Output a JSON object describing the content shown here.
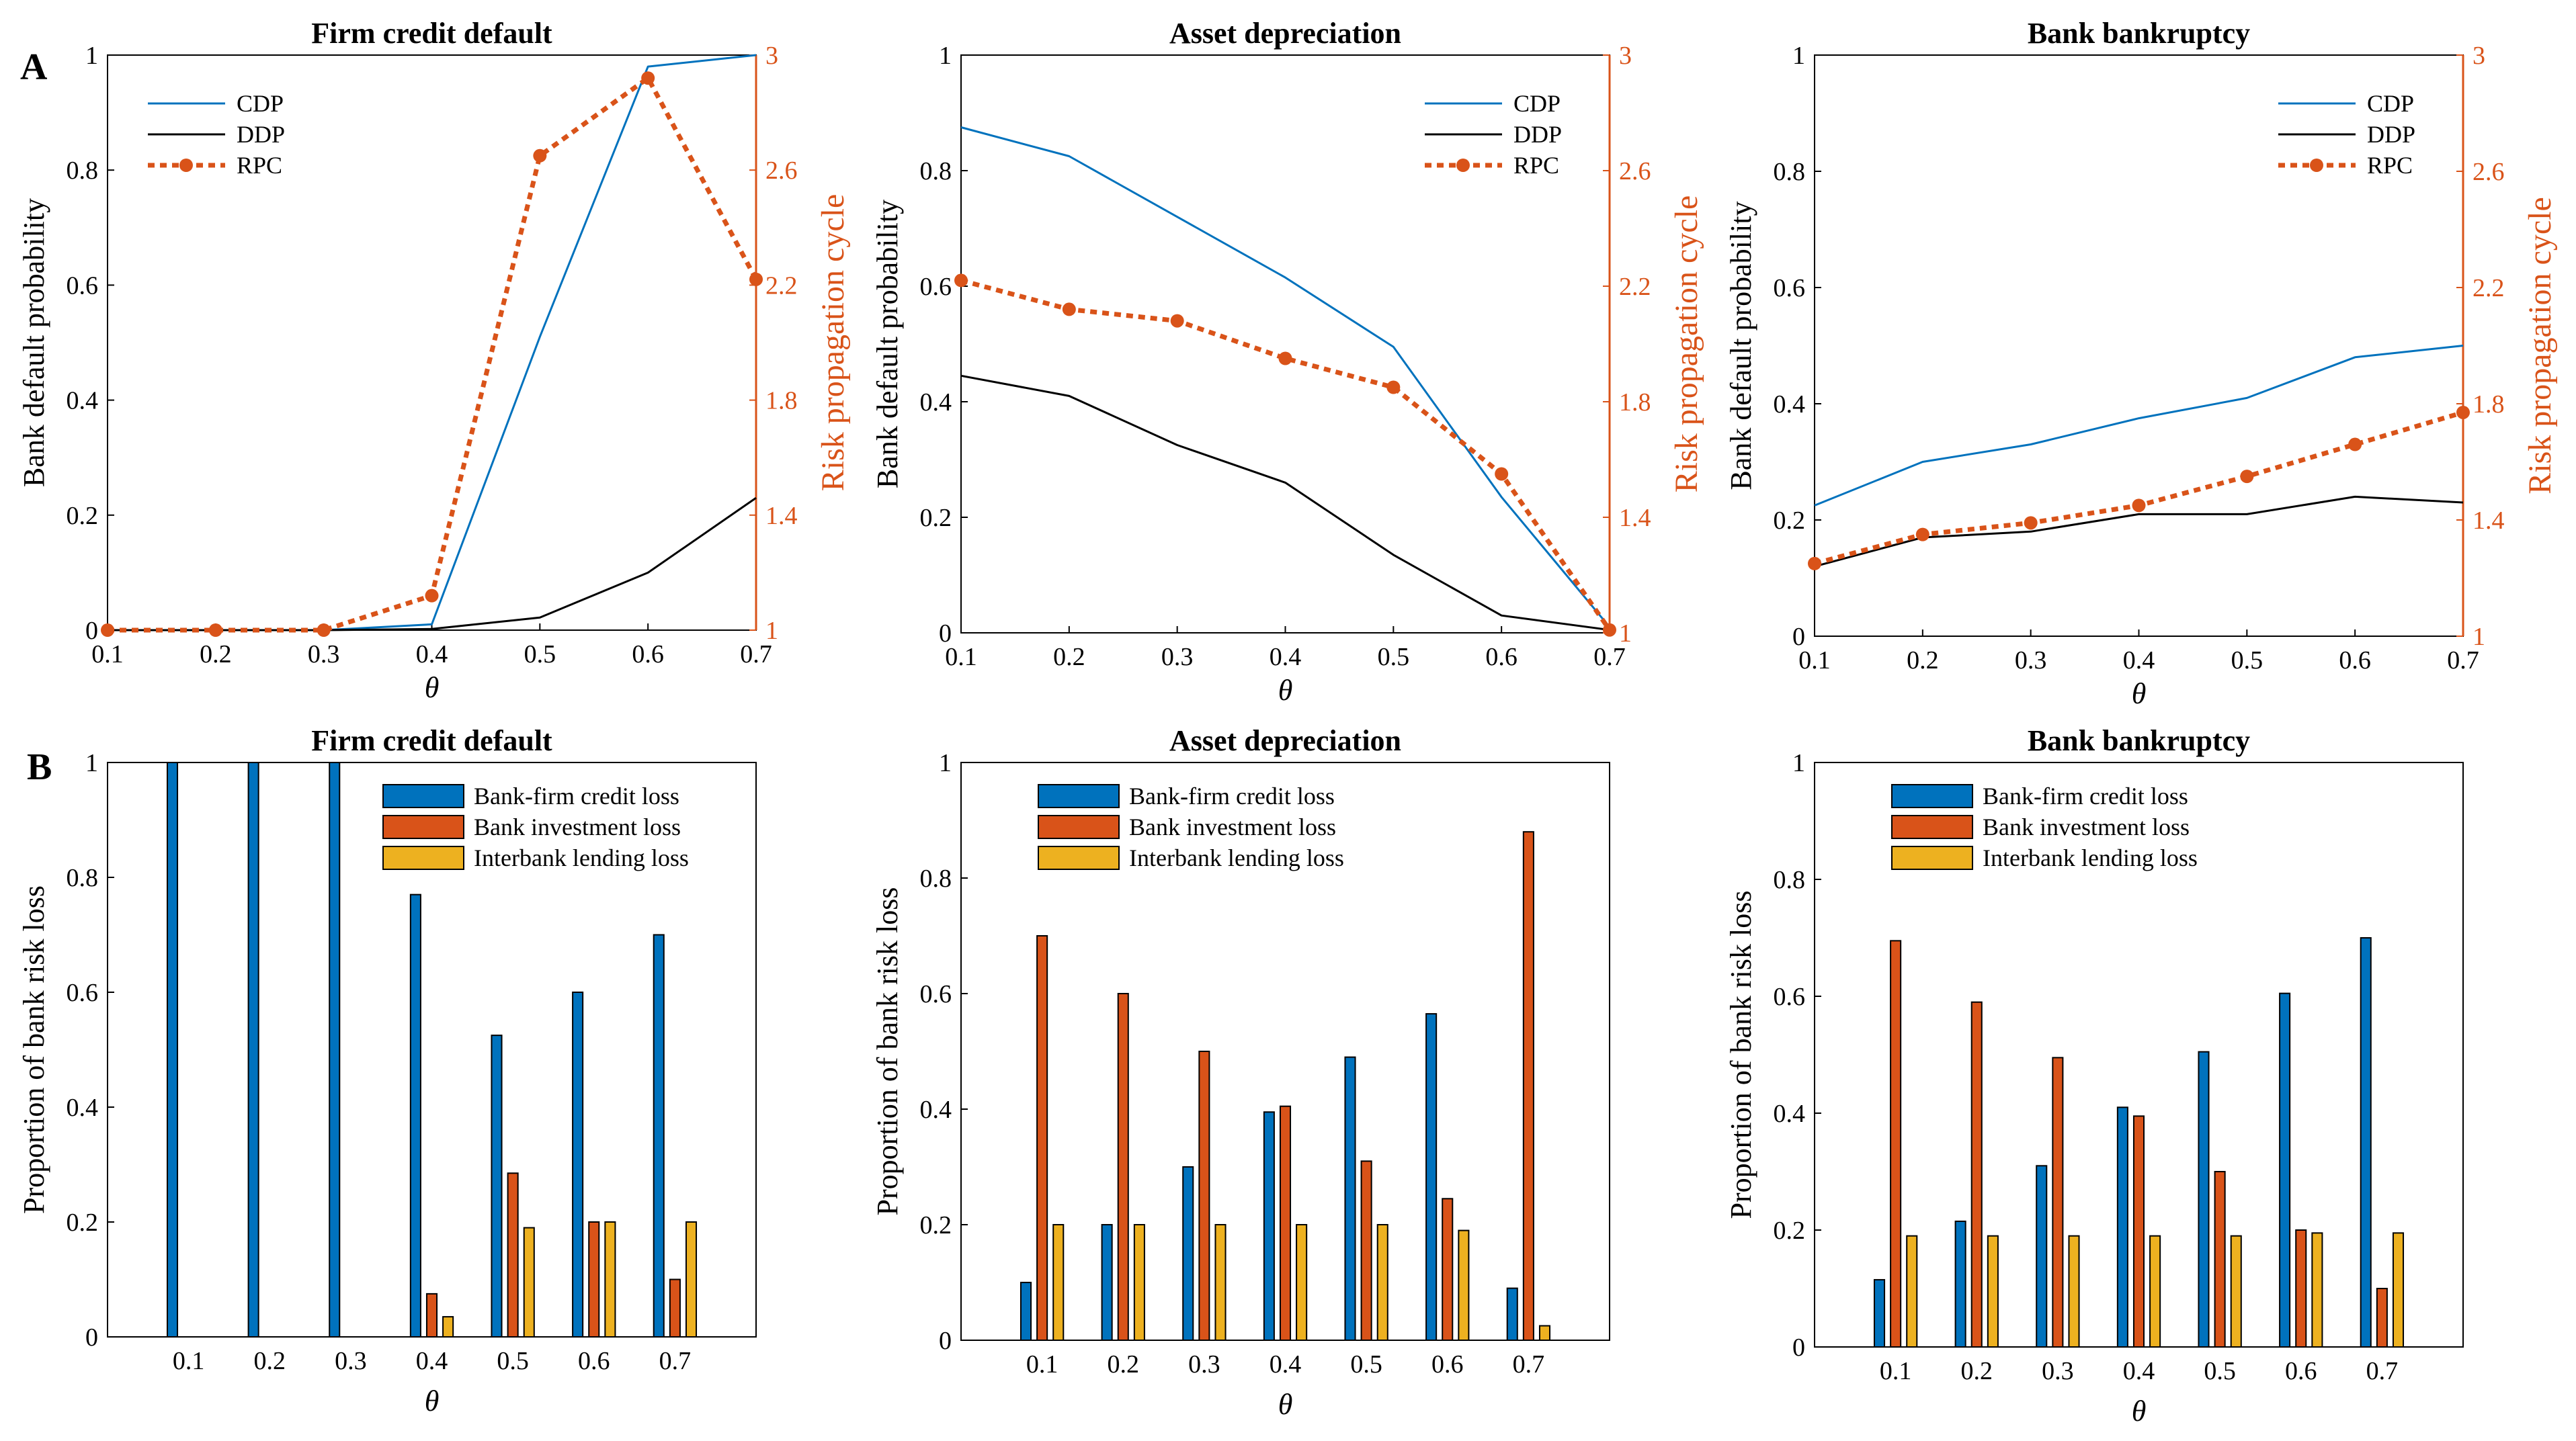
{
  "figure": {
    "panel_labels": [
      "A",
      "B"
    ],
    "colors": {
      "cdp": "#0072BD",
      "ddp": "#000000",
      "rpc": "#D95319",
      "credit": "#0072BD",
      "investment": "#D95319",
      "interbank": "#EDB120",
      "axis": "#000000"
    }
  },
  "chart_data": [
    {
      "id": "A1",
      "type": "line",
      "title": "Firm credit default",
      "xlabel": "θ",
      "ylabel": "Bank default probability",
      "ylabel_right": "Risk propagation cycle",
      "x": [
        0.1,
        0.2,
        0.3,
        0.4,
        0.5,
        0.6,
        0.7
      ],
      "x_tick_labels": [
        "0.1",
        "0.2",
        "0.3",
        "0.4",
        "0.5",
        "0.6",
        "0.7"
      ],
      "ylim": [
        0,
        1
      ],
      "y_tick_labels": [
        "0",
        "0.2",
        "0.4",
        "0.6",
        "0.8",
        "1"
      ],
      "ylim_right": [
        1,
        3
      ],
      "y_right_tick_labels": [
        "1",
        "1.4",
        "1.8",
        "2.2",
        "2.6",
        "3"
      ],
      "legend": [
        "CDP",
        "DDP",
        "RPC"
      ],
      "legend_position": "top-left",
      "series": [
        {
          "name": "CDP",
          "axis": "left",
          "values": [
            0,
            0,
            0,
            0.01,
            0.51,
            0.98,
            1.0
          ]
        },
        {
          "name": "DDP",
          "axis": "left",
          "values": [
            0,
            0,
            0,
            0.002,
            0.022,
            0.1,
            0.23
          ]
        },
        {
          "name": "RPC",
          "axis": "right",
          "values": [
            1.0,
            1.0,
            1.0,
            1.12,
            2.65,
            2.92,
            2.22
          ]
        }
      ]
    },
    {
      "id": "A2",
      "type": "line",
      "title": "Asset depreciation",
      "xlabel": "θ",
      "ylabel": "Bank default probability",
      "ylabel_right": "Risk propagation cycle",
      "x": [
        0.1,
        0.2,
        0.3,
        0.4,
        0.5,
        0.6,
        0.7
      ],
      "x_tick_labels": [
        "0.1",
        "0.2",
        "0.3",
        "0.4",
        "0.5",
        "0.6",
        "0.7"
      ],
      "ylim": [
        0,
        1
      ],
      "y_tick_labels": [
        "0",
        "0.2",
        "0.4",
        "0.6",
        "0.8",
        "1"
      ],
      "ylim_right": [
        1,
        3
      ],
      "y_right_tick_labels": [
        "1",
        "1.4",
        "1.8",
        "2.2",
        "2.6",
        "3"
      ],
      "legend": [
        "CDP",
        "DDP",
        "RPC"
      ],
      "legend_position": "top-right",
      "series": [
        {
          "name": "CDP",
          "axis": "left",
          "values": [
            0.875,
            0.825,
            0.72,
            0.615,
            0.495,
            0.235,
            0.01
          ]
        },
        {
          "name": "DDP",
          "axis": "left",
          "values": [
            0.445,
            0.41,
            0.325,
            0.26,
            0.135,
            0.03,
            0.005
          ]
        },
        {
          "name": "RPC",
          "axis": "right",
          "values": [
            2.22,
            2.12,
            2.08,
            1.95,
            1.85,
            1.55,
            1.01
          ]
        }
      ]
    },
    {
      "id": "A3",
      "type": "line",
      "title": "Bank bankruptcy",
      "xlabel": "θ",
      "ylabel": "Bank default probability",
      "ylabel_right": "Risk propagation cycle",
      "x": [
        0.1,
        0.2,
        0.3,
        0.4,
        0.5,
        0.6,
        0.7
      ],
      "x_tick_labels": [
        "0.1",
        "0.2",
        "0.3",
        "0.4",
        "0.5",
        "0.6",
        "0.7"
      ],
      "ylim": [
        0,
        1
      ],
      "y_tick_labels": [
        "0",
        "0.2",
        "0.4",
        "0.6",
        "0.8",
        "1"
      ],
      "ylim_right": [
        1,
        3
      ],
      "y_right_tick_labels": [
        "1",
        "1.4",
        "1.8",
        "2.2",
        "2.6",
        "3"
      ],
      "legend": [
        "CDP",
        "DDP",
        "RPC"
      ],
      "legend_position": "top-right",
      "series": [
        {
          "name": "CDP",
          "axis": "left",
          "values": [
            0.225,
            0.3,
            0.33,
            0.375,
            0.41,
            0.48,
            0.5
          ]
        },
        {
          "name": "DDP",
          "axis": "left",
          "values": [
            0.12,
            0.17,
            0.18,
            0.21,
            0.21,
            0.24,
            0.23
          ]
        },
        {
          "name": "RPC",
          "axis": "right",
          "values": [
            1.25,
            1.35,
            1.39,
            1.45,
            1.55,
            1.66,
            1.77
          ]
        }
      ]
    },
    {
      "id": "B1",
      "type": "bar",
      "title": "Firm credit default",
      "xlabel": "θ",
      "ylabel": "Proportion of bank risk loss",
      "categories": [
        "0.1",
        "0.2",
        "0.3",
        "0.4",
        "0.5",
        "0.6",
        "0.7"
      ],
      "ylim": [
        0,
        1
      ],
      "y_tick_labels": [
        "0",
        "0.2",
        "0.4",
        "0.6",
        "0.8",
        "1"
      ],
      "legend": [
        "Bank-firm credit loss",
        "Bank investment loss",
        "Interbank lending loss"
      ],
      "legend_position": "top-right",
      "series": [
        {
          "name": "Bank-firm credit loss",
          "values": [
            1.0,
            1.0,
            1.0,
            0.77,
            0.525,
            0.6,
            0.7
          ]
        },
        {
          "name": "Bank investment loss",
          "values": [
            0,
            0,
            0,
            0.075,
            0.285,
            0.2,
            0.1
          ]
        },
        {
          "name": "Interbank lending loss",
          "values": [
            0,
            0,
            0,
            0.035,
            0.19,
            0.2,
            0.2
          ]
        }
      ]
    },
    {
      "id": "B2",
      "type": "bar",
      "title": "Asset depreciation",
      "xlabel": "θ",
      "ylabel": "Proportion of bank risk loss",
      "categories": [
        "0.1",
        "0.2",
        "0.3",
        "0.4",
        "0.5",
        "0.6",
        "0.7"
      ],
      "ylim": [
        0,
        1
      ],
      "y_tick_labels": [
        "0",
        "0.2",
        "0.4",
        "0.6",
        "0.8",
        "1"
      ],
      "legend": [
        "Bank-firm credit loss",
        "Bank investment loss",
        "Interbank lending loss"
      ],
      "legend_position": "top-left",
      "series": [
        {
          "name": "Bank-firm credit loss",
          "values": [
            0.1,
            0.2,
            0.3,
            0.395,
            0.49,
            0.565,
            0.09
          ]
        },
        {
          "name": "Bank investment loss",
          "values": [
            0.7,
            0.6,
            0.5,
            0.405,
            0.31,
            0.245,
            0.88
          ]
        },
        {
          "name": "Interbank lending loss",
          "values": [
            0.2,
            0.2,
            0.2,
            0.2,
            0.2,
            0.19,
            0.025
          ]
        }
      ]
    },
    {
      "id": "B3",
      "type": "bar",
      "title": "Bank bankruptcy",
      "xlabel": "θ",
      "ylabel": "Proportion of bank risk loss",
      "categories": [
        "0.1",
        "0.2",
        "0.3",
        "0.4",
        "0.5",
        "0.6",
        "0.7"
      ],
      "ylim": [
        0,
        1
      ],
      "y_tick_labels": [
        "0",
        "0.2",
        "0.4",
        "0.6",
        "0.8",
        "1"
      ],
      "legend": [
        "Bank-firm credit loss",
        "Bank investment loss",
        "Interbank lending loss"
      ],
      "legend_position": "top-left",
      "series": [
        {
          "name": "Bank-firm credit loss",
          "values": [
            0.115,
            0.215,
            0.31,
            0.41,
            0.505,
            0.605,
            0.7
          ]
        },
        {
          "name": "Bank investment loss",
          "values": [
            0.695,
            0.59,
            0.495,
            0.395,
            0.3,
            0.2,
            0.1
          ]
        },
        {
          "name": "Interbank lending loss",
          "values": [
            0.19,
            0.19,
            0.19,
            0.19,
            0.19,
            0.195,
            0.195
          ]
        }
      ]
    }
  ]
}
